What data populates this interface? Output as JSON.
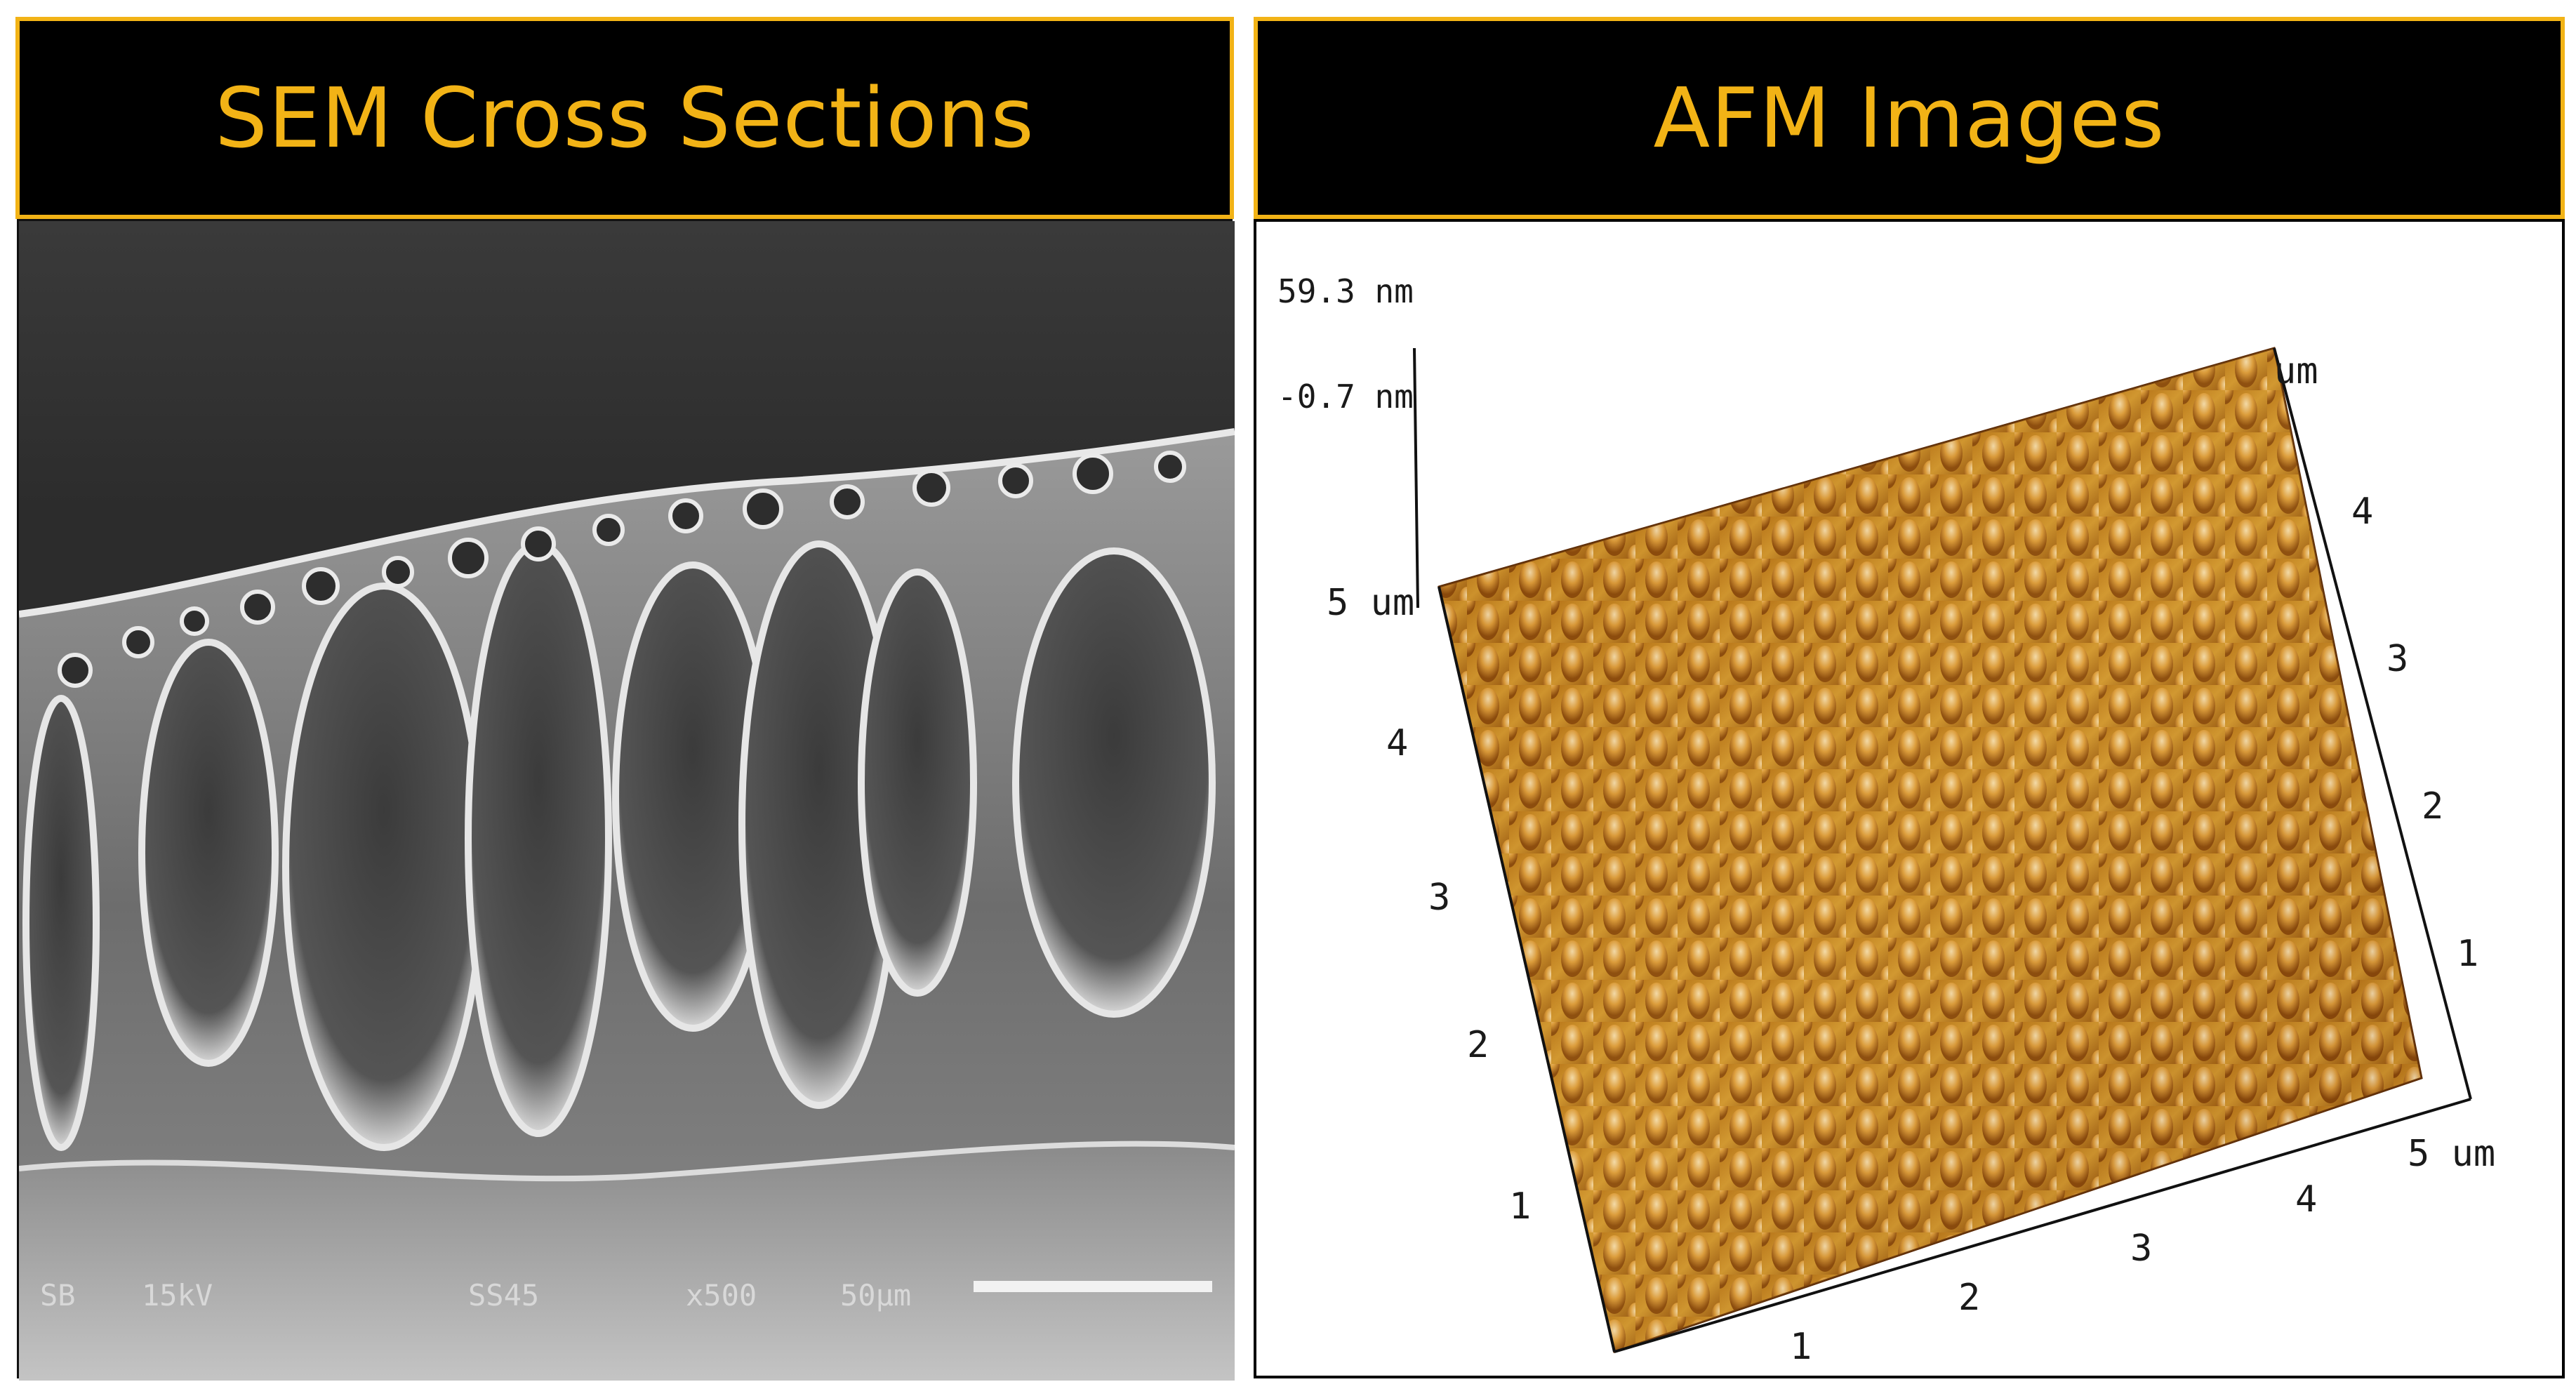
{
  "left_panel": {
    "title": "SEM Cross Sections",
    "sem_info": {
      "detector": "SB",
      "voltage": "15kV",
      "sample": "SS45",
      "magnification": "x500",
      "scale": "50μm"
    }
  },
  "right_panel": {
    "title": "AFM Images",
    "z_max": "59.3 nm",
    "z_min": "-0.7 nm",
    "unit": "um",
    "x_axis_ticks": [
      "1",
      "2",
      "3",
      "4",
      "5 um"
    ],
    "y_axis_ticks": [
      "1",
      "2",
      "3",
      "4",
      "5 um"
    ],
    "right_axis_ticks": [
      "1",
      "2",
      "3",
      "4"
    ],
    "right_axis_unit": "um"
  },
  "colors": {
    "header_bg": "#000000",
    "header_text": "#f2b316",
    "header_border": "#f2b316",
    "afm_peak": "#c88a1e",
    "afm_shadow": "#5a2a06"
  }
}
